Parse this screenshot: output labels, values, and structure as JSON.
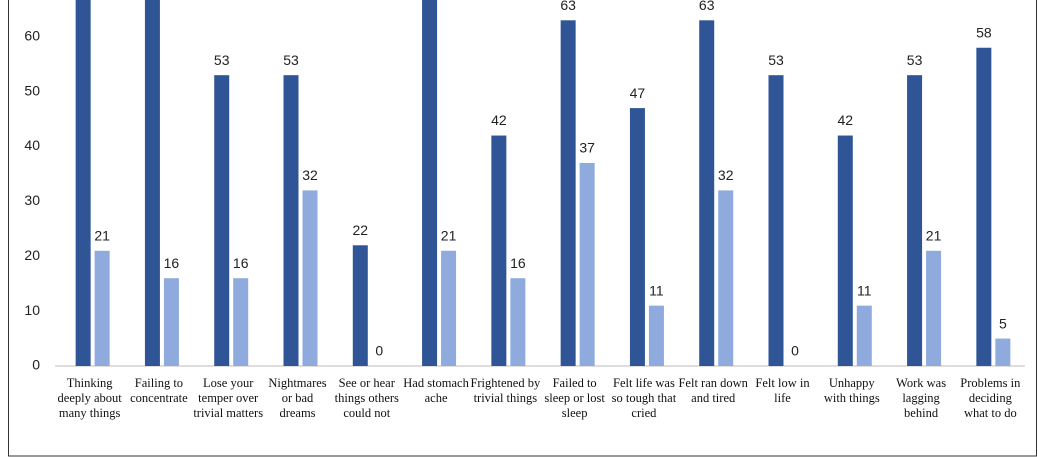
{
  "chart_data": {
    "type": "bar",
    "categories": [
      "Thinking deeply about many things",
      "Failing to concentrate",
      "Lose your temper over trivial matters",
      "Nightmares or bad dreams",
      "See or hear things others could not",
      "Had stomach ache",
      "Frightened by trivial things",
      "Failed to sleep or lost sleep",
      "Felt life was so tough that cried",
      "Felt ran down and tired",
      "Felt low in life",
      "Unhappy with things",
      "Work was lagging behind",
      "Problems in deciding what to do"
    ],
    "series": [
      {
        "color": "#2f5597",
        "values": [
          68,
          68,
          53,
          53,
          22,
          68,
          42,
          63,
          47,
          63,
          53,
          42,
          53,
          58
        ]
      },
      {
        "color": "#8faadc",
        "values": [
          21,
          16,
          16,
          32,
          0,
          21,
          16,
          37,
          11,
          32,
          0,
          11,
          21,
          5
        ]
      }
    ],
    "ylim": [
      0,
      66.7
    ],
    "yticks": [
      0,
      10,
      20,
      30,
      40,
      50,
      60
    ],
    "grid": false
  }
}
